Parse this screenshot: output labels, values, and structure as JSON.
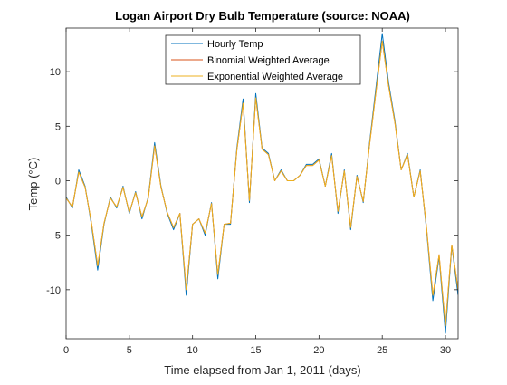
{
  "chart_data": {
    "type": "line",
    "title": "Logan Airport Dry Bulb Temperature (source: NOAA)",
    "xlabel": "Time elapsed from Jan 1, 2011 (days)",
    "ylabel_main": "Temp (",
    "ylabel_unit": "°C)",
    "xlim": [
      0,
      31
    ],
    "ylim": [
      -14.5,
      14
    ],
    "xticks": [
      0,
      5,
      10,
      15,
      20,
      25,
      30
    ],
    "xtick_labels": [
      "0",
      "5",
      "10",
      "15",
      "20",
      "25",
      "30"
    ],
    "yticks": [
      10,
      5,
      0,
      -5,
      -10
    ],
    "ytick_labels": [
      "10",
      "5",
      "0",
      "-5",
      "-10"
    ],
    "grid": false,
    "legend_position": "top-center",
    "x": [
      0,
      0.5,
      1,
      1.5,
      2,
      2.5,
      3,
      3.5,
      4,
      4.5,
      5,
      5.5,
      6,
      6.5,
      7,
      7.5,
      8,
      8.5,
      9,
      9.5,
      10,
      10.5,
      11,
      11.5,
      12,
      12.5,
      13,
      13.5,
      14,
      14.5,
      15,
      15.5,
      16,
      16.5,
      17,
      17.5,
      18,
      18.5,
      19,
      19.5,
      20,
      20.5,
      21,
      21.5,
      22,
      22.5,
      23,
      23.5,
      24,
      24.5,
      25,
      25.5,
      26,
      26.5,
      27,
      27.5,
      28,
      28.5,
      29,
      29.5,
      30,
      30.5,
      31
    ],
    "series": [
      {
        "name": "Hourly Temp",
        "color": "#0072BD",
        "values": [
          -1.5,
          -2.5,
          1.0,
          -0.5,
          -4.0,
          -8.2,
          -4.0,
          -1.5,
          -2.5,
          -0.5,
          -3.0,
          -1.0,
          -3.5,
          -1.5,
          3.5,
          -0.5,
          -3.0,
          -4.5,
          -3.0,
          -10.5,
          -4.0,
          -3.5,
          -5.0,
          -2.0,
          -9.0,
          -4.0,
          -4.0,
          3.0,
          7.5,
          -2.0,
          8.0,
          3.0,
          2.5,
          0.0,
          1.0,
          0.0,
          0.0,
          0.5,
          1.5,
          1.5,
          2.0,
          -0.5,
          2.5,
          -3.0,
          1.0,
          -4.5,
          0.5,
          -2.0,
          3.5,
          8.5,
          13.5,
          9.0,
          5.5,
          1.0,
          2.5,
          -1.5,
          1.0,
          -4.5,
          -11.0,
          -7.0,
          -14.0,
          -6.0,
          -10.5
        ]
      },
      {
        "name": "Binomial Weighted Average",
        "color": "#D95319",
        "values": [
          -1.6,
          -2.4,
          0.8,
          -0.6,
          -3.8,
          -7.8,
          -3.9,
          -1.6,
          -2.4,
          -0.6,
          -2.9,
          -1.1,
          -3.3,
          -1.6,
          3.2,
          -0.6,
          -2.9,
          -4.3,
          -3.0,
          -10.0,
          -4.0,
          -3.5,
          -4.8,
          -2.1,
          -8.6,
          -4.0,
          -3.9,
          2.8,
          7.1,
          -1.8,
          7.6,
          2.9,
          2.4,
          0.0,
          0.9,
          0.0,
          0.0,
          0.5,
          1.4,
          1.4,
          1.9,
          -0.5,
          2.3,
          -2.8,
          0.9,
          -4.3,
          0.4,
          -1.9,
          3.3,
          8.1,
          12.8,
          8.7,
          5.3,
          1.0,
          2.4,
          -1.5,
          0.9,
          -4.3,
          -10.5,
          -6.8,
          -13.3,
          -5.9,
          -10.0
        ]
      },
      {
        "name": "Exponential Weighted Average",
        "color": "#EDB120",
        "values": [
          -1.6,
          -2.4,
          0.8,
          -0.6,
          -3.8,
          -7.8,
          -3.9,
          -1.6,
          -2.4,
          -0.6,
          -2.9,
          -1.1,
          -3.3,
          -1.6,
          3.2,
          -0.6,
          -2.9,
          -4.3,
          -3.0,
          -10.0,
          -4.0,
          -3.5,
          -4.8,
          -2.1,
          -8.6,
          -4.0,
          -3.9,
          2.8,
          7.1,
          -1.8,
          7.6,
          2.9,
          2.4,
          0.0,
          0.9,
          0.0,
          0.0,
          0.5,
          1.4,
          1.4,
          1.9,
          -0.5,
          2.3,
          -2.8,
          0.9,
          -4.3,
          0.4,
          -1.9,
          3.3,
          8.1,
          12.8,
          8.7,
          5.3,
          1.0,
          2.4,
          -1.5,
          0.9,
          -4.3,
          -10.5,
          -6.8,
          -13.3,
          -5.9,
          -10.0
        ]
      }
    ]
  }
}
